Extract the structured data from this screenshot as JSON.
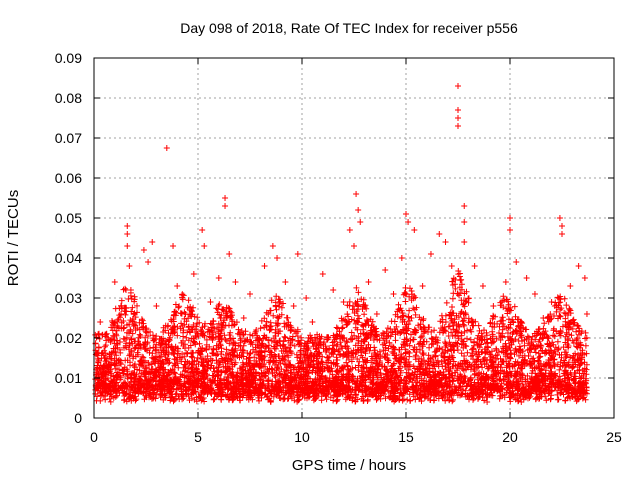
{
  "chart_data": {
    "type": "scatter",
    "title": "Day 098 of 2018, Rate Of TEC Index for receiver p556",
    "xlabel": "GPS time / hours",
    "ylabel": "ROTI / TECUs",
    "xlim": [
      0,
      25
    ],
    "ylim": [
      0,
      0.09
    ],
    "x_ticks": [
      0,
      5,
      10,
      15,
      20,
      25
    ],
    "x_tick_labels": [
      "0",
      "5",
      "10",
      "15",
      "20",
      "25"
    ],
    "y_ticks": [
      0,
      0.01,
      0.02,
      0.03,
      0.04,
      0.05,
      0.06,
      0.07,
      0.08,
      0.09
    ],
    "y_tick_labels": [
      "0",
      "0.01",
      "0.02",
      "0.03",
      "0.04",
      "0.05",
      "0.06",
      "0.07",
      "0.08",
      "0.09"
    ],
    "grid": true,
    "marker": "+",
    "marker_color": "#ff0000",
    "series": [
      {
        "name": "ROTI",
        "points": [
          [
            0.3,
            0.024
          ],
          [
            0.5,
            0.015
          ],
          [
            0.8,
            0.019
          ],
          [
            1.0,
            0.034
          ],
          [
            1.3,
            0.026
          ],
          [
            1.6,
            0.048
          ],
          [
            1.6,
            0.046
          ],
          [
            1.6,
            0.043
          ],
          [
            1.7,
            0.038
          ],
          [
            2.0,
            0.022
          ],
          [
            2.4,
            0.042
          ],
          [
            2.6,
            0.039
          ],
          [
            2.8,
            0.044
          ],
          [
            3.0,
            0.028
          ],
          [
            3.5,
            0.0675
          ],
          [
            3.8,
            0.043
          ],
          [
            4.0,
            0.033
          ],
          [
            4.4,
            0.026
          ],
          [
            4.8,
            0.036
          ],
          [
            5.2,
            0.047
          ],
          [
            5.3,
            0.043
          ],
          [
            5.6,
            0.029
          ],
          [
            6.0,
            0.035
          ],
          [
            6.3,
            0.055
          ],
          [
            6.3,
            0.053
          ],
          [
            6.5,
            0.041
          ],
          [
            6.8,
            0.034
          ],
          [
            7.2,
            0.025
          ],
          [
            7.5,
            0.031
          ],
          [
            7.8,
            0.022
          ],
          [
            8.2,
            0.038
          ],
          [
            8.6,
            0.043
          ],
          [
            8.8,
            0.04
          ],
          [
            9.2,
            0.034
          ],
          [
            9.6,
            0.028
          ],
          [
            9.8,
            0.041
          ],
          [
            10.2,
            0.03
          ],
          [
            10.5,
            0.024
          ],
          [
            11.0,
            0.036
          ],
          [
            11.5,
            0.032
          ],
          [
            12.0,
            0.029
          ],
          [
            12.3,
            0.047
          ],
          [
            12.5,
            0.043
          ],
          [
            12.6,
            0.056
          ],
          [
            12.7,
            0.052
          ],
          [
            12.8,
            0.049
          ],
          [
            13.2,
            0.034
          ],
          [
            13.6,
            0.026
          ],
          [
            14.0,
            0.037
          ],
          [
            14.4,
            0.031
          ],
          [
            14.8,
            0.04
          ],
          [
            15.0,
            0.051
          ],
          [
            15.1,
            0.049
          ],
          [
            15.4,
            0.047
          ],
          [
            15.8,
            0.033
          ],
          [
            16.2,
            0.041
          ],
          [
            16.6,
            0.046
          ],
          [
            16.9,
            0.044
          ],
          [
            17.2,
            0.038
          ],
          [
            17.5,
            0.083
          ],
          [
            17.5,
            0.077
          ],
          [
            17.5,
            0.075
          ],
          [
            17.5,
            0.073
          ],
          [
            17.8,
            0.053
          ],
          [
            17.8,
            0.049
          ],
          [
            17.8,
            0.044
          ],
          [
            18.3,
            0.038
          ],
          [
            18.7,
            0.033
          ],
          [
            19.2,
            0.028
          ],
          [
            19.8,
            0.034
          ],
          [
            20.0,
            0.05
          ],
          [
            20.0,
            0.047
          ],
          [
            20.3,
            0.039
          ],
          [
            20.8,
            0.035
          ],
          [
            21.2,
            0.031
          ],
          [
            21.6,
            0.025
          ],
          [
            22.0,
            0.029
          ],
          [
            22.4,
            0.05
          ],
          [
            22.5,
            0.048
          ],
          [
            22.5,
            0.046
          ],
          [
            22.9,
            0.033
          ],
          [
            23.3,
            0.038
          ],
          [
            23.6,
            0.035
          ],
          [
            23.7,
            0.026
          ],
          [
            0.2,
            0.008
          ],
          [
            1.5,
            0.006
          ],
          [
            2.7,
            0.007
          ],
          [
            4.5,
            0.009
          ],
          [
            6.9,
            0.005
          ],
          [
            8.5,
            0.004
          ],
          [
            10.7,
            0.006
          ],
          [
            12.9,
            0.007
          ],
          [
            14.6,
            0.005
          ],
          [
            16.5,
            0.006
          ],
          [
            18.9,
            0.004
          ],
          [
            21.1,
            0.007
          ],
          [
            23.5,
            0.006
          ]
        ]
      }
    ]
  }
}
